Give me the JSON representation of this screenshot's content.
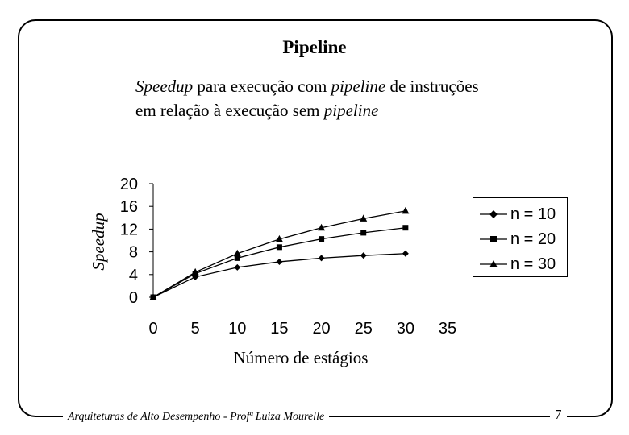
{
  "slide": {
    "title": "Pipeline",
    "subtitle_line1_italic": "Speedup",
    "subtitle_line1_rest": " para execução com ",
    "subtitle_line1_italic2": "pipeline",
    "subtitle_line1_end": " de instruções",
    "subtitle_line2_start": "em relação à execução sem ",
    "subtitle_line2_italic": "pipeline",
    "footer": "Arquiteturas de Alto Desempenho - Profª Luiza Mourelle",
    "page_number": "7"
  },
  "chart_data": {
    "type": "line",
    "title": "",
    "xlabel": "Número de estágios",
    "ylabel": "Speedup",
    "xlim": [
      0,
      35
    ],
    "ylim": [
      0,
      20
    ],
    "xticks": [
      0,
      5,
      10,
      15,
      20,
      25,
      30,
      35
    ],
    "yticks": [
      0,
      4,
      8,
      12,
      16,
      20
    ],
    "x": [
      0,
      5,
      10,
      15,
      20,
      25,
      30
    ],
    "legend_position": "right",
    "series": [
      {
        "name": "n = 10",
        "marker": "diamond",
        "values": [
          0,
          3.57,
          5.26,
          6.25,
          6.9,
          7.35,
          7.69
        ]
      },
      {
        "name": "n = 20",
        "marker": "square",
        "values": [
          0,
          4.17,
          6.9,
          8.82,
          10.26,
          11.36,
          12.24
        ]
      },
      {
        "name": "n = 30",
        "marker": "triangle",
        "values": [
          0,
          4.41,
          7.69,
          10.23,
          12.24,
          13.85,
          15.19
        ]
      }
    ]
  }
}
